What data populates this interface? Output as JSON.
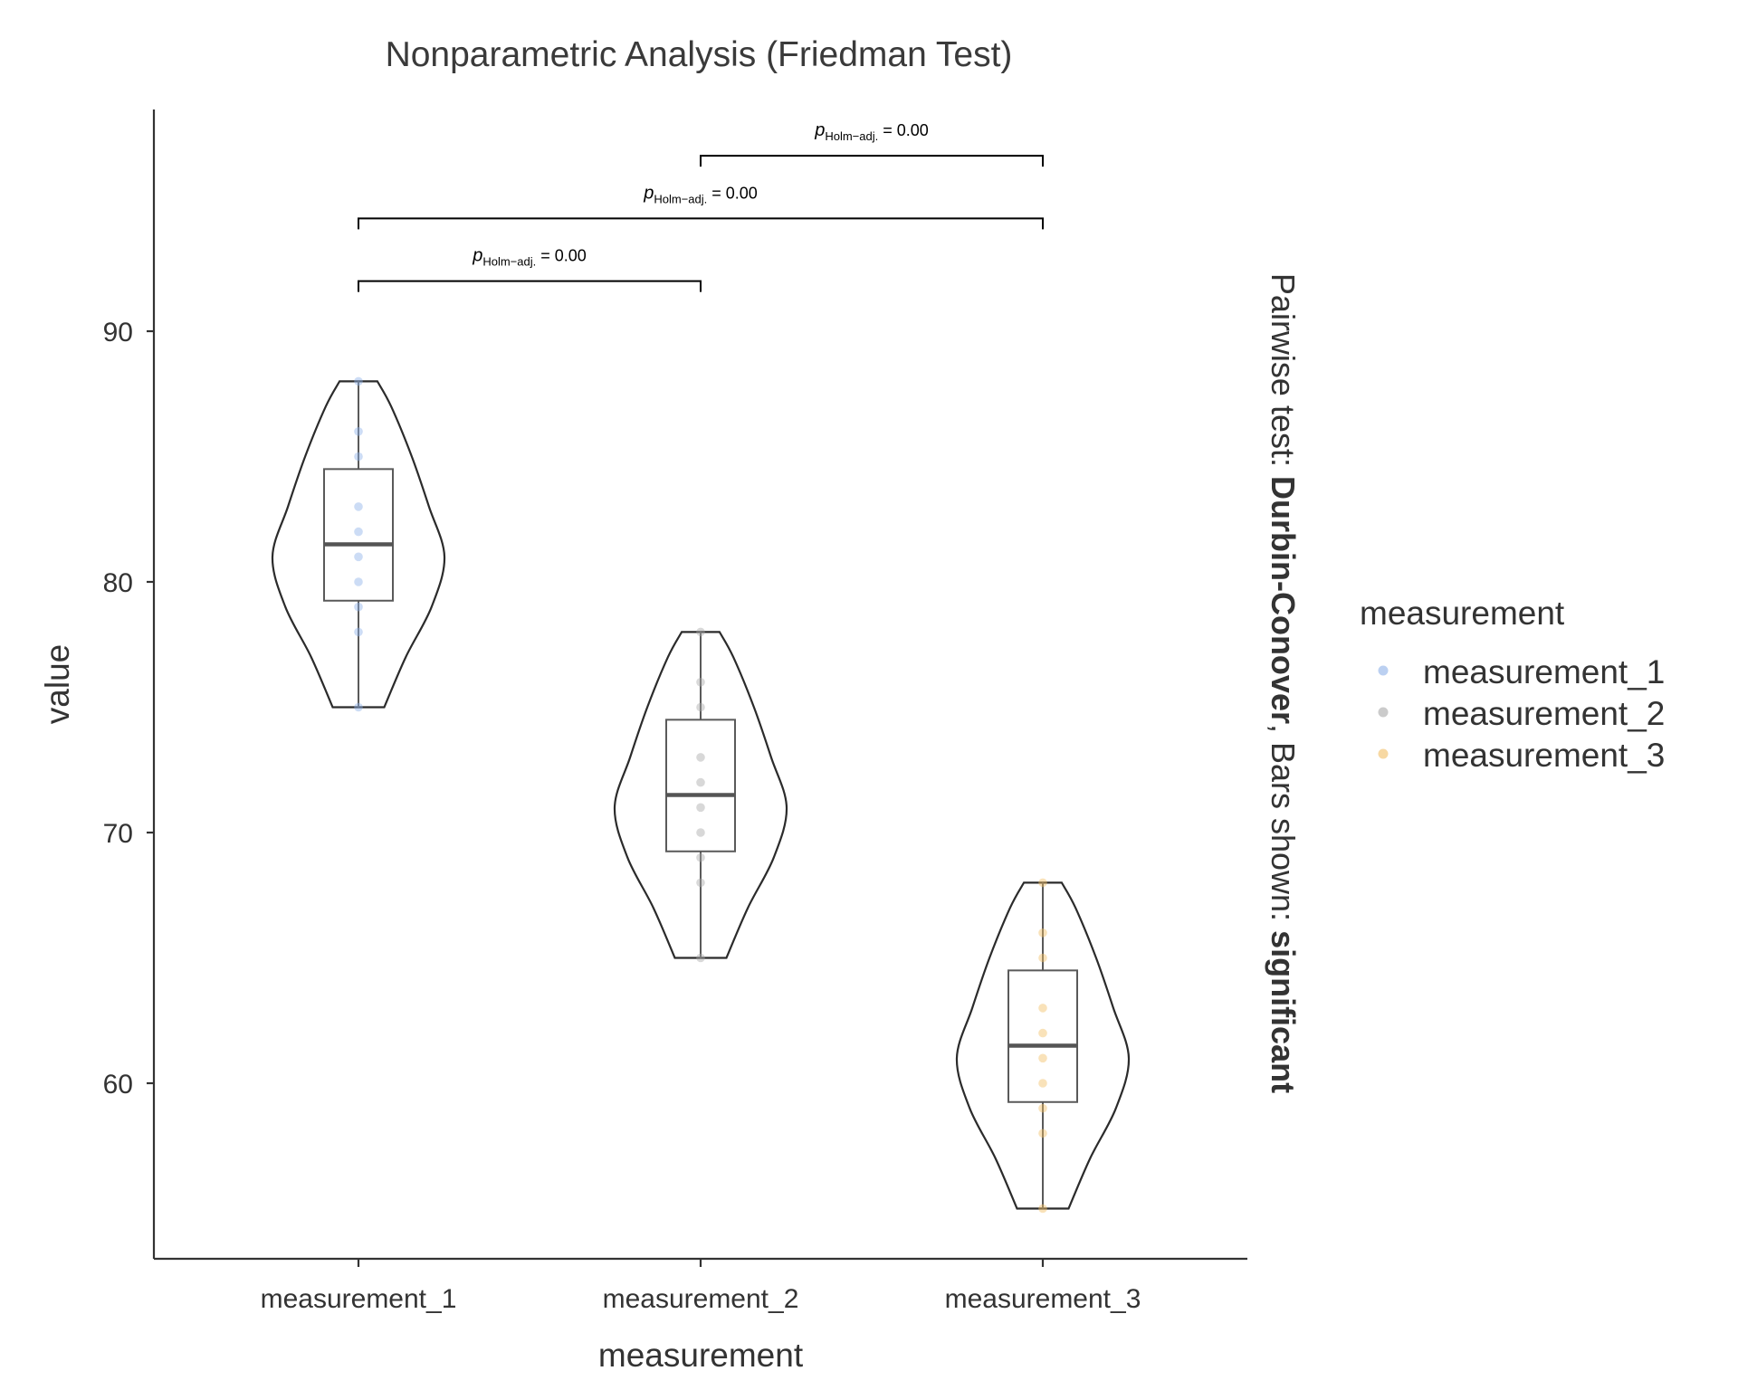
{
  "chart_data": {
    "type": "violin",
    "title": "Nonparametric Analysis (Friedman Test)",
    "xlabel": "measurement",
    "ylabel": "value",
    "ylim": [
      53,
      99
    ],
    "y_ticks": [
      60,
      70,
      80,
      90
    ],
    "y_tick_labels": [
      "60",
      "70",
      "80",
      "90"
    ],
    "grid": false,
    "categories": [
      "measurement_1",
      "measurement_2",
      "measurement_3"
    ],
    "series": [
      {
        "name": "measurement_1",
        "color": "#8DB1E8",
        "points": [
          75,
          78,
          79,
          80,
          81,
          82,
          83,
          85,
          86,
          88
        ],
        "box": {
          "min": 75,
          "q1": 79.25,
          "median": 81.5,
          "q3": 84.5,
          "max": 88
        },
        "density": [
          [
            75,
            0.3
          ],
          [
            77,
            0.55
          ],
          [
            79,
            0.85
          ],
          [
            81,
            1.0
          ],
          [
            83,
            0.82
          ],
          [
            85,
            0.62
          ],
          [
            87,
            0.38
          ],
          [
            88,
            0.22
          ]
        ]
      },
      {
        "name": "measurement_2",
        "color": "#A8A8A8",
        "points": [
          65,
          68,
          69,
          70,
          71,
          72,
          73,
          75,
          76,
          78
        ],
        "box": {
          "min": 65,
          "q1": 69.25,
          "median": 71.5,
          "q3": 74.5,
          "max": 78
        },
        "density": [
          [
            65,
            0.3
          ],
          [
            67,
            0.55
          ],
          [
            69,
            0.85
          ],
          [
            71,
            1.0
          ],
          [
            73,
            0.82
          ],
          [
            75,
            0.62
          ],
          [
            77,
            0.38
          ],
          [
            78,
            0.22
          ]
        ]
      },
      {
        "name": "measurement_3",
        "color": "#F2BE64",
        "points": [
          55,
          58,
          59,
          60,
          61,
          62,
          63,
          65,
          66,
          68
        ],
        "box": {
          "min": 55,
          "q1": 59.25,
          "median": 61.5,
          "q3": 64.5,
          "max": 68
        },
        "density": [
          [
            55,
            0.3
          ],
          [
            57,
            0.55
          ],
          [
            59,
            0.85
          ],
          [
            61,
            1.0
          ],
          [
            63,
            0.82
          ],
          [
            65,
            0.62
          ],
          [
            67,
            0.38
          ],
          [
            68,
            0.22
          ]
        ]
      }
    ],
    "comparisons": [
      {
        "from": "measurement_1",
        "to": "measurement_2",
        "label_main": "p",
        "label_sub": "Holm−adj.",
        "label_value": " = 0.00",
        "y": 92
      },
      {
        "from": "measurement_1",
        "to": "measurement_3",
        "label_main": "p",
        "label_sub": "Holm−adj.",
        "label_value": " = 0.00",
        "y": 94.5
      },
      {
        "from": "measurement_2",
        "to": "measurement_3",
        "label_main": "p",
        "label_sub": "Holm−adj.",
        "label_value": " = 0.00",
        "y": 97
      }
    ],
    "caption": {
      "prefix": "Pairwise test: ",
      "test": "Durbin-Conover",
      "middle": ", Bars shown: ",
      "shown": "significant"
    },
    "legend": {
      "title": "measurement",
      "placement": "right",
      "items": [
        {
          "label": "measurement_1",
          "color": "#8DB1E8"
        },
        {
          "label": "measurement_2",
          "color": "#A8A8A8"
        },
        {
          "label": "measurement_3",
          "color": "#F2BE64"
        }
      ]
    }
  }
}
